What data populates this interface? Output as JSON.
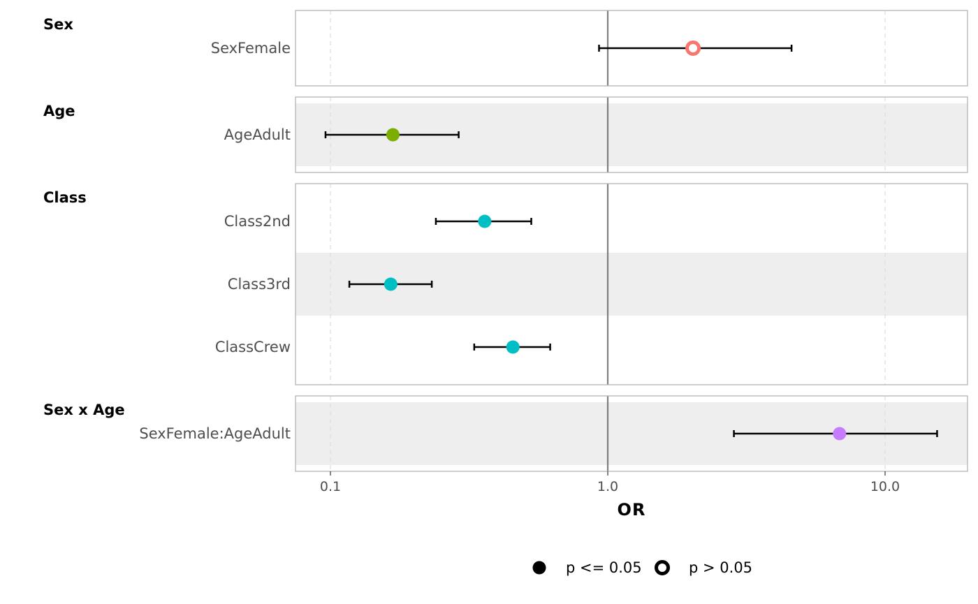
{
  "chart_data": {
    "type": "scatter",
    "xlabel": "OR",
    "x_scale": "log10",
    "xlim": [
      0.075,
      19.5
    ],
    "x_ticks": [
      {
        "value": 0.1,
        "label": "0.1"
      },
      {
        "value": 1.0,
        "label": "1.0"
      },
      {
        "value": 10.0,
        "label": "10.0"
      }
    ],
    "reference_line": 1.0,
    "grid": "vertical-dashed",
    "legend_position": "bottom",
    "legend": [
      {
        "label": "p <= 0.05",
        "marker": "filled-circle"
      },
      {
        "label": "p > 0.05",
        "marker": "open-circle"
      }
    ],
    "groups": [
      {
        "name": "Sex",
        "terms": [
          {
            "label": "SexFemale",
            "or": 2.03,
            "ci_low": 0.93,
            "ci_high": 4.6,
            "significant": false,
            "color": "#F8766D"
          }
        ]
      },
      {
        "name": "Age",
        "terms": [
          {
            "label": "AgeAdult",
            "or": 0.168,
            "ci_low": 0.096,
            "ci_high": 0.29,
            "significant": true,
            "color": "#7CAE00"
          }
        ]
      },
      {
        "name": "Class",
        "terms": [
          {
            "label": "Class2nd",
            "or": 0.36,
            "ci_low": 0.24,
            "ci_high": 0.53,
            "significant": true,
            "color": "#00BFC4"
          },
          {
            "label": "Class3rd",
            "or": 0.165,
            "ci_low": 0.117,
            "ci_high": 0.232,
            "significant": true,
            "color": "#00BFC4"
          },
          {
            "label": "ClassCrew",
            "or": 0.455,
            "ci_low": 0.33,
            "ci_high": 0.62,
            "significant": true,
            "color": "#00BFC4"
          }
        ]
      },
      {
        "name": "Sex x Age",
        "terms": [
          {
            "label": "SexFemale:AgeAdult",
            "or": 6.85,
            "ci_low": 2.85,
            "ci_high": 15.4,
            "significant": true,
            "color": "#C77CFF"
          }
        ]
      }
    ]
  }
}
